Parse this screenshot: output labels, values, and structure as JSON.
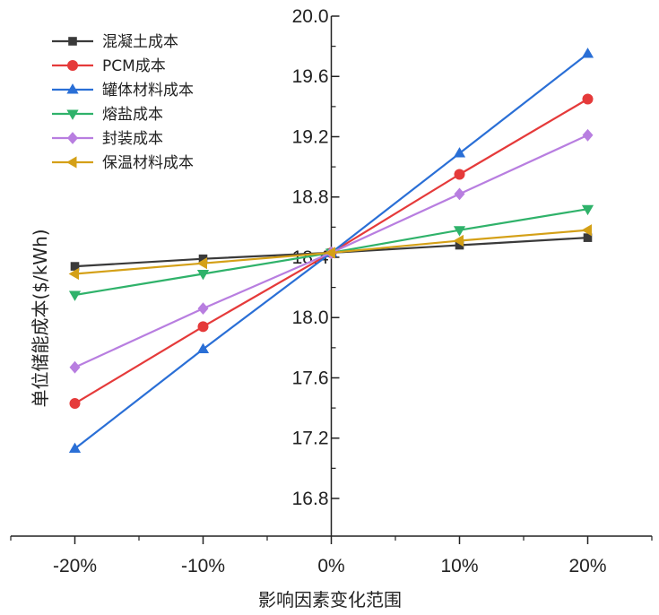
{
  "chart_data": {
    "type": "line",
    "title": "",
    "xlabel": "影响因素变化范围",
    "ylabel": "单位储能成本($/kWh)",
    "categories": [
      "-20%",
      "-10%",
      "0%",
      "10%",
      "20%"
    ],
    "x": [
      -20,
      -10,
      0,
      10,
      20
    ],
    "xlim": [
      -25,
      25
    ],
    "ylim": [
      16.55,
      20.0
    ],
    "yticks": [
      "16.8",
      "17.2",
      "17.6",
      "18.0",
      "18.4",
      "18.8",
      "19.2",
      "19.6",
      "20.0"
    ],
    "ytick_values": [
      16.8,
      17.2,
      17.6,
      18.0,
      18.4,
      18.8,
      19.2,
      19.6,
      20.0
    ],
    "grid": false,
    "legend_position": "top-left",
    "series": [
      {
        "name": "混凝土成本",
        "color": "#3a3a3a",
        "marker": "square",
        "values": [
          18.34,
          18.39,
          18.43,
          18.48,
          18.53
        ]
      },
      {
        "name": "PCM成本",
        "color": "#e53a3a",
        "marker": "circle",
        "values": [
          17.43,
          17.94,
          18.43,
          18.95,
          19.45
        ]
      },
      {
        "name": "罐体材料成本",
        "color": "#2a6fd6",
        "marker": "triangle-up",
        "values": [
          17.13,
          17.79,
          18.43,
          19.09,
          19.75
        ]
      },
      {
        "name": "熔盐成本",
        "color": "#2fb26a",
        "marker": "triangle-down",
        "values": [
          18.15,
          18.29,
          18.43,
          18.58,
          18.72
        ]
      },
      {
        "name": "封装成本",
        "color": "#b87ee0",
        "marker": "diamond",
        "values": [
          17.67,
          18.06,
          18.43,
          18.82,
          19.21
        ]
      },
      {
        "name": "保温材料成本",
        "color": "#d4a017",
        "marker": "triangle-left",
        "values": [
          18.29,
          18.36,
          18.43,
          18.51,
          18.58
        ]
      }
    ]
  }
}
